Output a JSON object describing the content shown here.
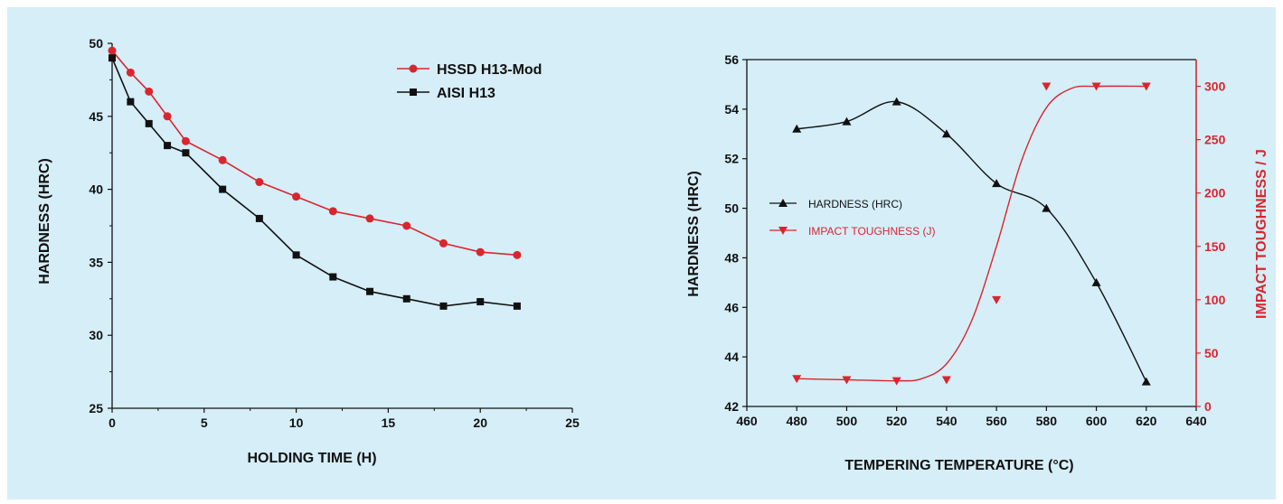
{
  "chart_data": [
    {
      "type": "line",
      "title": "",
      "xlabel": "HOLDING TIME (H)",
      "ylabel": "HARDNESS (HRC)",
      "xlim": [
        0,
        25
      ],
      "ylim": [
        25,
        50
      ],
      "x_ticks": [
        0,
        5,
        10,
        15,
        20,
        25
      ],
      "y_ticks": [
        25,
        30,
        35,
        40,
        45,
        50
      ],
      "legend_position": "top-right",
      "grid": false,
      "series": [
        {
          "name": "HSSD H13-Mod",
          "color": "#d9262e",
          "marker": "circle",
          "x": [
            0,
            1,
            2,
            3,
            4,
            6,
            8,
            10,
            12,
            14,
            16,
            18,
            20,
            22
          ],
          "y": [
            49.5,
            48.0,
            46.7,
            45.0,
            43.3,
            42.0,
            40.5,
            39.5,
            38.5,
            38.0,
            37.5,
            36.3,
            35.7,
            35.5
          ]
        },
        {
          "name": "AISI H13",
          "color": "#111111",
          "marker": "square",
          "x": [
            0,
            1,
            2,
            3,
            4,
            6,
            8,
            10,
            12,
            14,
            16,
            18,
            20,
            22
          ],
          "y": [
            49.0,
            46.0,
            44.5,
            43.0,
            42.5,
            40.0,
            38.0,
            35.5,
            34.0,
            33.0,
            32.5,
            32.0,
            32.3,
            32.0
          ]
        }
      ]
    },
    {
      "type": "line",
      "title": "",
      "xlabel": "TEMPERING TEMPERATURE (°C)",
      "ylabel": "HARDNESS (HRC)",
      "y2label": "IMPACT TOUGHNESS / J",
      "xlim": [
        460,
        640
      ],
      "ylim": [
        42,
        56
      ],
      "y2lim": [
        0,
        325
      ],
      "x_ticks": [
        460,
        480,
        500,
        520,
        540,
        560,
        580,
        600,
        620,
        640
      ],
      "y_ticks": [
        42,
        44,
        46,
        48,
        50,
        52,
        54,
        56
      ],
      "y2_ticks": [
        0,
        50,
        100,
        150,
        200,
        250,
        300
      ],
      "legend_position": "center-left",
      "grid": false,
      "series": [
        {
          "name": "HARDNESS (HRC)",
          "axis": "left",
          "color": "#111111",
          "marker": "triangle-up",
          "x": [
            480,
            500,
            520,
            540,
            560,
            580,
            600,
            620
          ],
          "y": [
            53.2,
            53.5,
            54.3,
            53.0,
            51.0,
            50.0,
            47.0,
            43.0
          ]
        },
        {
          "name": "IMPACT TOUGHNESS (J)",
          "axis": "right",
          "color": "#d9262e",
          "marker": "triangle-down",
          "x": [
            480,
            500,
            520,
            540,
            560,
            580,
            600,
            620
          ],
          "y": [
            26,
            25,
            24,
            25,
            100,
            300,
            300,
            300
          ],
          "curve_x": [
            480,
            500,
            520,
            530,
            540,
            550,
            560,
            570,
            580,
            590,
            600,
            620
          ],
          "curve_y": [
            26,
            25,
            24,
            26,
            40,
            80,
            150,
            230,
            280,
            298,
            300,
            300
          ]
        }
      ]
    }
  ]
}
